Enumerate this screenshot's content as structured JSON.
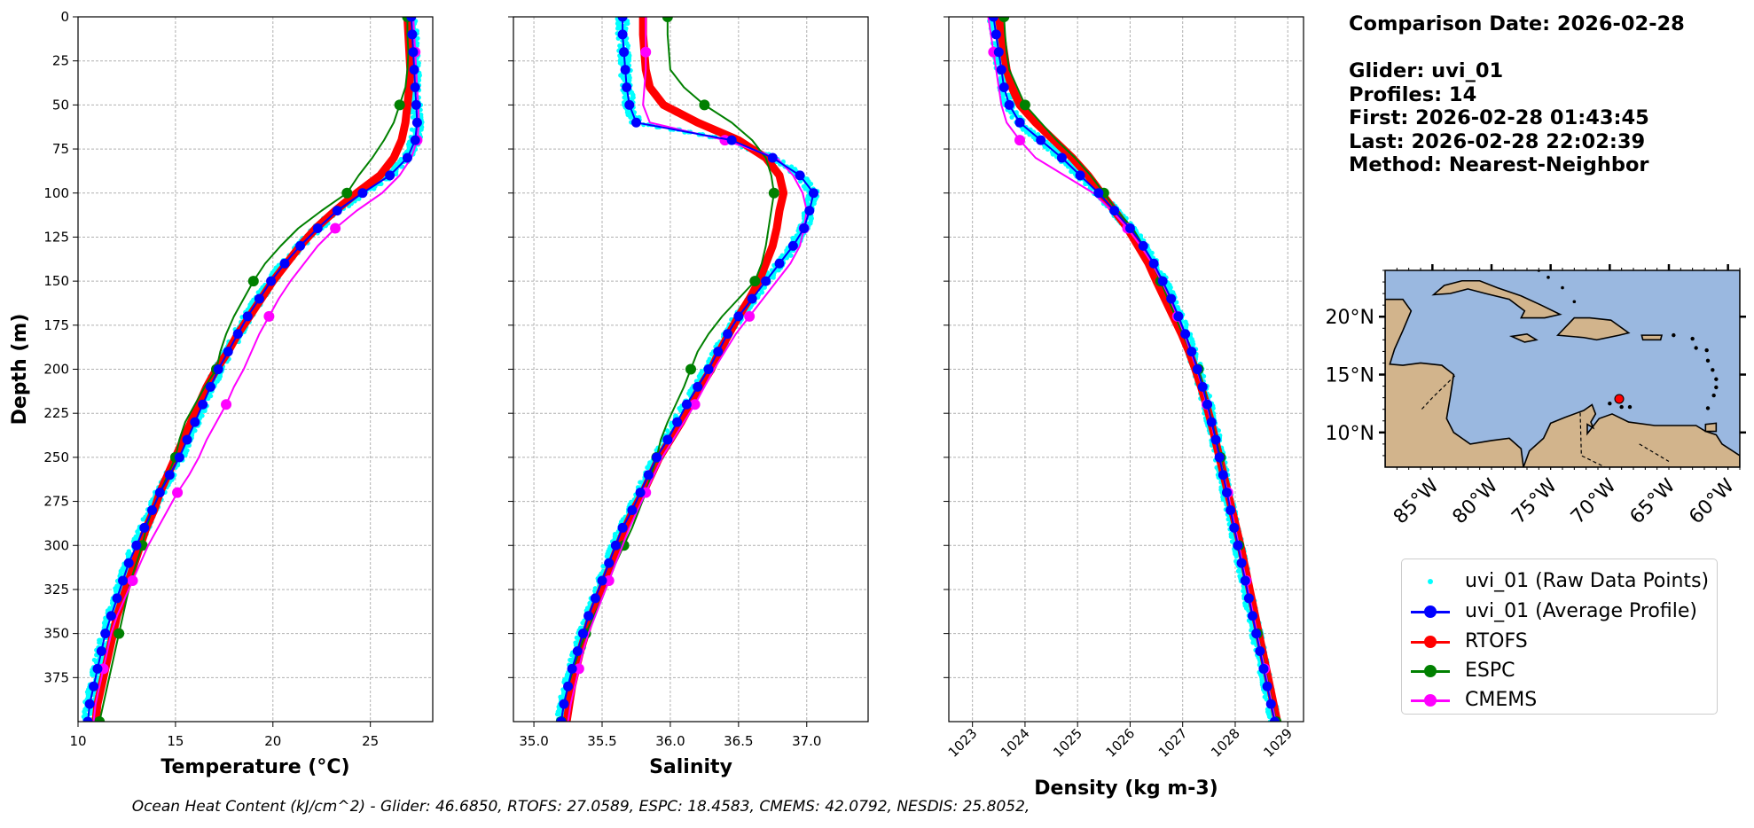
{
  "figure": {
    "info_lines": [
      "Comparison Date: 2026-02-28",
      "",
      "Glider: uvi_01",
      "Profiles: 14",
      "First: 2026-02-28 01:43:45",
      "Last: 2026-02-28 22:02:39",
      "Method: Nearest-Neighbor"
    ],
    "footer": "Ocean Heat Content (kJ/cm^2) - Glider: 46.6850,  RTOFS: 27.0589,  ESPC: 18.4583,  CMEMS: 42.0792,  NESDIS: 25.8052,",
    "colors": {
      "raw": "#00ffff",
      "average": "#0000ff",
      "rtofs": "#ff0000",
      "espc": "#008000",
      "cmems": "#ff00ff",
      "ocean": "#9ab8e0",
      "land": "#d2b48c"
    }
  },
  "legend": {
    "items": [
      {
        "key": "raw",
        "label": "uvi_01 (Raw Data Points)"
      },
      {
        "key": "average",
        "label": "uvi_01 (Average Profile)"
      },
      {
        "key": "rtofs",
        "label": "RTOFS"
      },
      {
        "key": "espc",
        "label": "ESPC"
      },
      {
        "key": "cmems",
        "label": "CMEMS"
      }
    ]
  },
  "chart_data": [
    {
      "type": "line",
      "xlabel": "Temperature (°C)",
      "ylabel": "Depth (m)",
      "xlim": [
        10,
        28.2
      ],
      "ylim": [
        400,
        0
      ],
      "xticks": [
        10,
        15,
        20,
        25
      ],
      "yticks": [
        0,
        25,
        50,
        75,
        100,
        125,
        150,
        175,
        200,
        225,
        250,
        275,
        300,
        325,
        350,
        375
      ],
      "grid": true,
      "depth": [
        0,
        10,
        20,
        30,
        40,
        50,
        60,
        70,
        80,
        90,
        100,
        110,
        120,
        130,
        140,
        150,
        160,
        170,
        180,
        190,
        200,
        210,
        220,
        230,
        240,
        250,
        260,
        270,
        280,
        290,
        300,
        310,
        320,
        330,
        340,
        350,
        360,
        370,
        380,
        390,
        400
      ],
      "series": [
        {
          "name": "uvi_01 (Average Profile)",
          "key": "average",
          "values": [
            27.1,
            27.15,
            27.2,
            27.25,
            27.3,
            27.35,
            27.4,
            27.3,
            26.9,
            26.0,
            24.6,
            23.3,
            22.3,
            21.4,
            20.6,
            19.9,
            19.3,
            18.7,
            18.2,
            17.7,
            17.2,
            16.8,
            16.4,
            16.0,
            15.6,
            15.2,
            14.7,
            14.2,
            13.8,
            13.4,
            13.0,
            12.6,
            12.3,
            12.0,
            11.7,
            11.4,
            11.2,
            11.0,
            10.8,
            10.6,
            10.5
          ]
        },
        {
          "name": "RTOFS",
          "key": "rtofs",
          "values": [
            26.9,
            26.95,
            27.0,
            27.05,
            27.0,
            26.9,
            26.8,
            26.6,
            26.2,
            25.5,
            24.3,
            23.2,
            22.2,
            21.4,
            20.7,
            20.0,
            19.4,
            18.8,
            18.2,
            17.7,
            17.1,
            16.6,
            16.2,
            15.8,
            15.4,
            15.0,
            14.6,
            14.2,
            13.9,
            13.5,
            13.2,
            12.9,
            12.6,
            12.3,
            12.0,
            11.8,
            11.6,
            11.4,
            11.2,
            11.0,
            10.9
          ]
        },
        {
          "name": "ESPC",
          "key": "espc",
          "values": [
            26.9,
            26.9,
            26.95,
            26.9,
            26.8,
            26.5,
            26.2,
            25.7,
            25.1,
            24.4,
            23.8,
            22.5,
            21.3,
            20.4,
            19.6,
            19.0,
            18.5,
            18.0,
            17.6,
            17.3,
            17.1,
            16.5,
            16.0,
            15.5,
            15.2,
            15.0,
            14.6,
            14.2,
            13.8,
            13.5,
            13.3,
            13.0,
            12.7,
            12.5,
            12.3,
            12.1,
            11.9,
            11.7,
            11.5,
            11.3,
            11.1
          ]
        },
        {
          "name": "CMEMS",
          "key": "cmems",
          "values": [
            27.2,
            27.25,
            27.3,
            27.35,
            27.4,
            27.45,
            27.5,
            27.4,
            27.1,
            26.5,
            25.6,
            24.3,
            23.2,
            22.3,
            21.6,
            20.9,
            20.3,
            19.8,
            19.3,
            18.9,
            18.5,
            18.0,
            17.6,
            17.1,
            16.6,
            16.2,
            15.7,
            15.1,
            14.6,
            14.1,
            13.6,
            13.2,
            12.8,
            12.4,
            12.0,
            11.7,
            11.5,
            11.3,
            11.1,
            10.9,
            10.8
          ]
        }
      ]
    },
    {
      "type": "line",
      "xlabel": "Salinity",
      "xlim": [
        34.85,
        37.45
      ],
      "ylim": [
        400,
        0
      ],
      "xticks": [
        35.0,
        35.5,
        36.0,
        36.5,
        37.0
      ],
      "xtick_labels": [
        "35.0",
        "35.5",
        "36.0",
        "36.5",
        "37.0"
      ],
      "grid": true,
      "depth": [
        0,
        10,
        20,
        30,
        40,
        50,
        60,
        70,
        80,
        90,
        100,
        110,
        120,
        130,
        140,
        150,
        160,
        170,
        180,
        190,
        200,
        210,
        220,
        230,
        240,
        250,
        260,
        270,
        280,
        290,
        300,
        310,
        320,
        330,
        340,
        350,
        360,
        370,
        380,
        390,
        400
      ],
      "series": [
        {
          "name": "uvi_01 (Average Profile)",
          "key": "average",
          "values": [
            35.65,
            35.65,
            35.66,
            35.67,
            35.68,
            35.7,
            35.75,
            36.45,
            36.75,
            36.95,
            37.05,
            37.02,
            36.98,
            36.9,
            36.8,
            36.7,
            36.6,
            36.5,
            36.42,
            36.35,
            36.28,
            36.2,
            36.12,
            36.05,
            35.98,
            35.9,
            35.84,
            35.78,
            35.72,
            35.65,
            35.6,
            35.55,
            35.5,
            35.45,
            35.4,
            35.36,
            35.32,
            35.28,
            35.25,
            35.22,
            35.2
          ]
        },
        {
          "name": "RTOFS",
          "key": "rtofs",
          "values": [
            35.8,
            35.8,
            35.81,
            35.82,
            35.85,
            35.95,
            36.2,
            36.5,
            36.7,
            36.8,
            36.83,
            36.8,
            36.78,
            36.75,
            36.7,
            36.65,
            36.58,
            36.5,
            36.43,
            36.36,
            36.3,
            36.22,
            36.15,
            36.08,
            36.0,
            35.92,
            35.86,
            35.8,
            35.73,
            35.67,
            35.62,
            35.57,
            35.52,
            35.47,
            35.42,
            35.38,
            35.34,
            35.31,
            35.28,
            35.26,
            35.24
          ]
        },
        {
          "name": "ESPC",
          "key": "espc",
          "values": [
            35.98,
            35.98,
            35.99,
            36.0,
            36.1,
            36.25,
            36.45,
            36.6,
            36.7,
            36.74,
            36.76,
            36.74,
            36.72,
            36.7,
            36.67,
            36.62,
            36.5,
            36.38,
            36.28,
            36.2,
            36.15,
            36.1,
            36.04,
            35.98,
            35.93,
            35.9,
            35.86,
            35.82,
            35.77,
            35.72,
            35.66,
            35.6,
            35.55,
            35.5,
            35.44,
            35.38,
            35.33,
            35.29,
            35.25,
            35.22,
            35.2
          ]
        },
        {
          "name": "CMEMS",
          "key": "cmems",
          "values": [
            35.82,
            35.82,
            35.82,
            35.82,
            35.81,
            35.8,
            35.85,
            36.4,
            36.78,
            36.9,
            36.97,
            37.0,
            36.98,
            36.95,
            36.88,
            36.78,
            36.68,
            36.58,
            36.48,
            36.4,
            36.32,
            36.25,
            36.18,
            36.1,
            36.02,
            35.94,
            35.88,
            35.82,
            35.76,
            35.7,
            35.65,
            35.6,
            35.55,
            35.5,
            35.45,
            35.4,
            35.36,
            35.33,
            35.3,
            35.27,
            35.25
          ]
        }
      ]
    },
    {
      "type": "line",
      "xlabel": "Density (kg m-3)",
      "xlim": [
        1022.55,
        1029.3
      ],
      "ylim": [
        400,
        0
      ],
      "xticks": [
        1023,
        1024,
        1025,
        1026,
        1027,
        1028,
        1029
      ],
      "grid": true,
      "depth": [
        0,
        10,
        20,
        30,
        40,
        50,
        60,
        70,
        80,
        90,
        100,
        110,
        120,
        130,
        140,
        150,
        160,
        170,
        180,
        190,
        200,
        210,
        220,
        230,
        240,
        250,
        260,
        270,
        280,
        290,
        300,
        310,
        320,
        330,
        340,
        350,
        360,
        370,
        380,
        390,
        400
      ],
      "series": [
        {
          "name": "uvi_01 (Average Profile)",
          "key": "average",
          "values": [
            1023.4,
            1023.45,
            1023.5,
            1023.55,
            1023.6,
            1023.7,
            1023.9,
            1024.3,
            1024.7,
            1025.05,
            1025.4,
            1025.7,
            1026.0,
            1026.25,
            1026.45,
            1026.62,
            1026.78,
            1026.92,
            1027.05,
            1027.17,
            1027.28,
            1027.38,
            1027.47,
            1027.55,
            1027.63,
            1027.7,
            1027.77,
            1027.84,
            1027.91,
            1027.98,
            1028.05,
            1028.12,
            1028.19,
            1028.26,
            1028.33,
            1028.4,
            1028.47,
            1028.54,
            1028.61,
            1028.68,
            1028.75
          ]
        },
        {
          "name": "RTOFS",
          "key": "rtofs",
          "values": [
            1023.5,
            1023.55,
            1023.6,
            1023.65,
            1023.75,
            1023.9,
            1024.2,
            1024.55,
            1024.9,
            1025.2,
            1025.45,
            1025.7,
            1025.95,
            1026.15,
            1026.35,
            1026.5,
            1026.66,
            1026.82,
            1026.98,
            1027.12,
            1027.24,
            1027.35,
            1027.45,
            1027.54,
            1027.62,
            1027.7,
            1027.78,
            1027.86,
            1027.94,
            1028.02,
            1028.1,
            1028.17,
            1028.24,
            1028.31,
            1028.38,
            1028.45,
            1028.52,
            1028.59,
            1028.66,
            1028.73,
            1028.8
          ]
        },
        {
          "name": "ESPC",
          "key": "espc",
          "values": [
            1023.6,
            1023.62,
            1023.65,
            1023.7,
            1023.85,
            1024.0,
            1024.3,
            1024.6,
            1024.95,
            1025.25,
            1025.5,
            1025.75,
            1026.05,
            1026.25,
            1026.42,
            1026.58,
            1026.72,
            1026.86,
            1027.0,
            1027.15,
            1027.3,
            1027.4,
            1027.48,
            1027.56,
            1027.64,
            1027.72,
            1027.79,
            1027.86,
            1027.93,
            1028.0,
            1028.07,
            1028.14,
            1028.21,
            1028.28,
            1028.35,
            1028.42,
            1028.5,
            1028.57,
            1028.64,
            1028.71,
            1028.78
          ]
        },
        {
          "name": "CMEMS",
          "key": "cmems",
          "values": [
            1023.3,
            1023.35,
            1023.4,
            1023.45,
            1023.5,
            1023.55,
            1023.65,
            1023.9,
            1024.2,
            1024.75,
            1025.3,
            1025.65,
            1025.95,
            1026.2,
            1026.42,
            1026.6,
            1026.76,
            1026.9,
            1027.03,
            1027.15,
            1027.27,
            1027.37,
            1027.46,
            1027.54,
            1027.62,
            1027.7,
            1027.78,
            1027.86,
            1027.93,
            1028.0,
            1028.07,
            1028.14,
            1028.21,
            1028.28,
            1028.35,
            1028.42,
            1028.49,
            1028.56,
            1028.63,
            1028.7,
            1028.77
          ]
        }
      ]
    }
  ],
  "map": {
    "lat_labels": [
      "20°N",
      "15°N",
      "10°N"
    ],
    "lon_labels": [
      "85°W",
      "80°W",
      "75°W",
      "70°W",
      "65°W",
      "60°W"
    ],
    "extent": {
      "lon": [
        -89,
        -59
      ],
      "lat": [
        7,
        24
      ]
    },
    "glider_position": {
      "lon": -69.2,
      "lat": 12.9
    }
  }
}
